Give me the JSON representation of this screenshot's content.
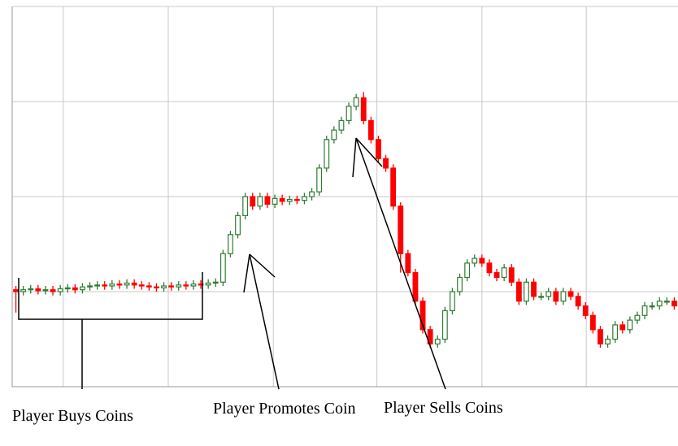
{
  "chart_data": {
    "type": "candlestick",
    "xlim": [
      -0.5,
      89.5
    ],
    "xticks": [
      6.4,
      20.6,
      34.8,
      48.8,
      63,
      77.1
    ],
    "ylim": [
      0,
      4
    ],
    "yticks": [
      0,
      1,
      2,
      3,
      4
    ],
    "grid": true,
    "up_color": "#2e7d32",
    "down_color": "#ff0000",
    "open": [
      1.02,
      1.0,
      1.02,
      1.03,
      1.01,
      1.02,
      1.0,
      1.03,
      1.04,
      1.02,
      1.05,
      1.06,
      1.07,
      1.06,
      1.08,
      1.07,
      1.09,
      1.07,
      1.06,
      1.05,
      1.04,
      1.06,
      1.05,
      1.07,
      1.06,
      1.08,
      1.07,
      1.09,
      1.1,
      1.4,
      1.6,
      1.8,
      2.0,
      1.9,
      2.0,
      1.92,
      1.98,
      1.95,
      1.97,
      1.96,
      2.0,
      2.05,
      2.3,
      2.6,
      2.7,
      2.8,
      2.95,
      3.04,
      2.8,
      2.6,
      2.4,
      2.3,
      1.9,
      1.4,
      1.2,
      0.9,
      0.6,
      0.45,
      0.5,
      0.8,
      1.0,
      1.15,
      1.3,
      1.35,
      1.3,
      1.2,
      1.15,
      1.25,
      1.1,
      0.9,
      1.1,
      0.95,
      0.95,
      1.0,
      0.9,
      1.0,
      0.95,
      0.85,
      0.75,
      0.6,
      0.45,
      0.5,
      0.65,
      0.6,
      0.7,
      0.75,
      0.85,
      0.85,
      0.9,
      0.9
    ],
    "high": [
      1.06,
      1.06,
      1.07,
      1.07,
      1.06,
      1.06,
      1.07,
      1.08,
      1.08,
      1.09,
      1.1,
      1.11,
      1.11,
      1.12,
      1.12,
      1.13,
      1.13,
      1.11,
      1.1,
      1.09,
      1.1,
      1.1,
      1.11,
      1.11,
      1.12,
      1.12,
      1.13,
      1.14,
      1.44,
      1.64,
      1.84,
      2.04,
      2.04,
      2.04,
      2.04,
      2.02,
      2.02,
      2.01,
      2.01,
      2.04,
      2.09,
      2.34,
      2.64,
      2.74,
      2.84,
      2.99,
      3.08,
      3.1,
      2.84,
      2.64,
      2.44,
      2.34,
      1.94,
      1.44,
      1.24,
      0.94,
      0.64,
      0.54,
      0.84,
      1.04,
      1.19,
      1.34,
      1.39,
      1.39,
      1.34,
      1.24,
      1.29,
      1.29,
      1.14,
      1.14,
      1.14,
      0.99,
      1.04,
      1.04,
      1.04,
      1.04,
      0.99,
      0.89,
      0.79,
      0.64,
      0.54,
      0.69,
      0.69,
      0.74,
      0.79,
      0.89,
      0.89,
      0.94,
      0.94,
      0.94
    ],
    "low": [
      0.78,
      0.96,
      0.98,
      0.97,
      0.97,
      0.96,
      0.96,
      0.99,
      0.98,
      0.98,
      1.01,
      1.02,
      1.02,
      1.02,
      1.03,
      1.03,
      1.03,
      1.02,
      1.01,
      1.0,
      1.0,
      1.01,
      1.01,
      1.02,
      1.02,
      1.03,
      1.03,
      1.05,
      1.06,
      1.36,
      1.56,
      1.76,
      1.86,
      1.86,
      1.88,
      1.88,
      1.91,
      1.91,
      1.92,
      1.92,
      1.96,
      2.01,
      2.26,
      2.56,
      2.66,
      2.76,
      2.91,
      2.76,
      2.56,
      2.36,
      2.26,
      1.86,
      1.2,
      1.16,
      0.86,
      0.56,
      0.41,
      0.41,
      0.46,
      0.76,
      0.96,
      1.11,
      1.26,
      1.26,
      1.16,
      1.11,
      1.11,
      1.06,
      0.86,
      0.86,
      0.91,
      0.91,
      0.91,
      0.86,
      0.86,
      0.91,
      0.81,
      0.71,
      0.56,
      0.41,
      0.41,
      0.46,
      0.56,
      0.56,
      0.66,
      0.71,
      0.81,
      0.81,
      0.86,
      0.81
    ],
    "close": [
      1.0,
      1.02,
      1.03,
      1.01,
      1.02,
      1.0,
      1.03,
      1.04,
      1.02,
      1.05,
      1.06,
      1.07,
      1.06,
      1.08,
      1.07,
      1.09,
      1.07,
      1.06,
      1.05,
      1.04,
      1.06,
      1.05,
      1.07,
      1.06,
      1.08,
      1.07,
      1.09,
      1.1,
      1.4,
      1.6,
      1.8,
      2.0,
      1.9,
      2.0,
      1.92,
      1.98,
      1.95,
      1.97,
      1.96,
      2.0,
      2.05,
      2.3,
      2.6,
      2.7,
      2.8,
      2.95,
      3.04,
      2.8,
      2.6,
      2.4,
      2.3,
      1.9,
      1.4,
      1.2,
      0.9,
      0.6,
      0.45,
      0.5,
      0.8,
      1.0,
      1.15,
      1.3,
      1.35,
      1.3,
      1.2,
      1.15,
      1.25,
      1.1,
      0.9,
      1.1,
      0.95,
      0.95,
      1.0,
      0.9,
      1.0,
      0.95,
      0.85,
      0.75,
      0.6,
      0.45,
      0.5,
      0.65,
      0.6,
      0.7,
      0.75,
      0.85,
      0.85,
      0.9,
      0.9,
      0.85
    ],
    "annotations": [
      "Player Buys Coins",
      "Player Promotes Coin",
      "Player Sells Coins"
    ]
  }
}
